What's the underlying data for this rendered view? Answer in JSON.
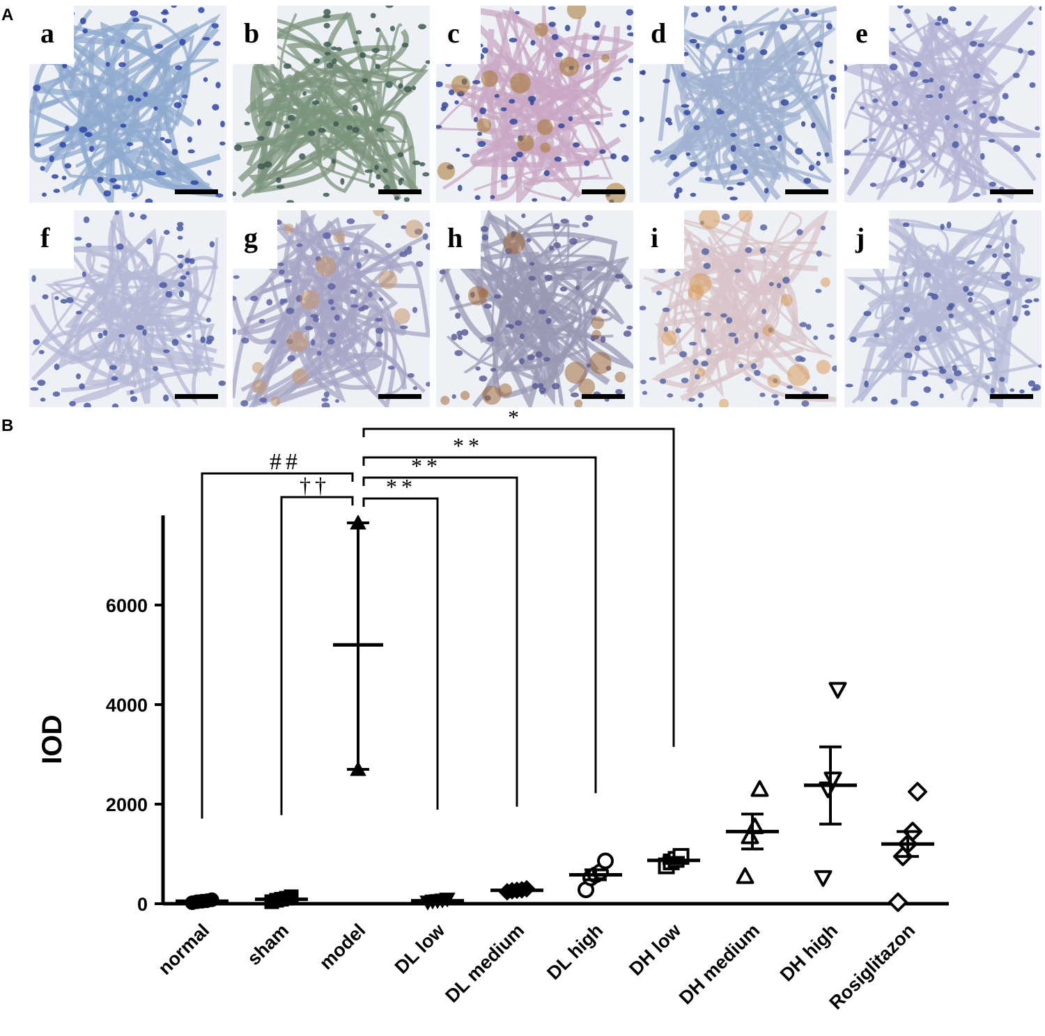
{
  "figure": {
    "panel_a_letter": "A",
    "panel_b_letter": "B"
  },
  "micrographs": [
    {
      "label": "a",
      "tissue": "#8fa9cf",
      "nuclei": "#2e45a8",
      "pigment": ""
    },
    {
      "label": "b",
      "tissue": "#7c947c",
      "nuclei": "#3e5a52",
      "pigment": ""
    },
    {
      "label": "c",
      "tissue": "#c9a8c4",
      "nuclei": "#34479c",
      "pigment": "#a5752c"
    },
    {
      "label": "d",
      "tissue": "#9fb0d0",
      "nuclei": "#34489c",
      "pigment": ""
    },
    {
      "label": "e",
      "tissue": "#b6b6d6",
      "nuclei": "#4c5aa6",
      "pigment": ""
    },
    {
      "label": "f",
      "tissue": "#b6b8d6",
      "nuclei": "#4a5aa4",
      "pigment": ""
    },
    {
      "label": "g",
      "tissue": "#a7a6c6",
      "nuclei": "#5e64a6",
      "pigment": "#c4956a"
    },
    {
      "label": "h",
      "tissue": "#9a98b4",
      "nuclei": "#5a5e96",
      "pigment": "#a06a3a"
    },
    {
      "label": "i",
      "tissue": "#d8c4c8",
      "nuclei": "#5c66a6",
      "pigment": "#d99a5a"
    },
    {
      "label": "j",
      "tissue": "#b6bad6",
      "nuclei": "#4a5aa2",
      "pigment": ""
    }
  ],
  "chart_data": {
    "type": "scatter",
    "ylabel": "IOD",
    "ylim": [
      0,
      7800
    ],
    "yticks": [
      0,
      2000,
      4000,
      6000
    ],
    "ytick_labels": [
      "0",
      "2000",
      "4000",
      "6000"
    ],
    "categories": [
      "normal",
      "sham",
      "model",
      "DL low",
      "DL medium",
      "DL high",
      "DH low",
      "DH medium",
      "DH high",
      "Rosiglitazon"
    ],
    "groups": [
      {
        "name": "normal",
        "marker": "circle-filled",
        "mean": 50,
        "sem_low": 30,
        "sem_high": 70,
        "points": [
          20,
          40,
          50,
          60,
          80
        ]
      },
      {
        "name": "sham",
        "marker": "square-filled",
        "mean": 90,
        "sem_low": 60,
        "sem_high": 120,
        "points": [
          40,
          70,
          90,
          110,
          140
        ]
      },
      {
        "name": "model",
        "marker": "triangle-up-filled",
        "mean": 5200,
        "sem_low": 2700,
        "sem_high": 7650,
        "points": [
          7650,
          2700
        ]
      },
      {
        "name": "DL low",
        "marker": "triangle-down-filled",
        "mean": 60,
        "sem_low": 40,
        "sem_high": 80,
        "points": [
          30,
          50,
          60,
          70,
          90
        ]
      },
      {
        "name": "DL medium",
        "marker": "diamond-filled",
        "mean": 270,
        "sem_low": 250,
        "sem_high": 290,
        "points": [
          240,
          260,
          270,
          280,
          300
        ]
      },
      {
        "name": "DL high",
        "marker": "circle-open",
        "mean": 580,
        "sem_low": 480,
        "sem_high": 680,
        "points": [
          280,
          520,
          580,
          640,
          860
        ]
      },
      {
        "name": "DH low",
        "marker": "square-open",
        "mean": 870,
        "sem_low": 810,
        "sem_high": 930,
        "points": [
          760,
          840,
          890,
          950
        ]
      },
      {
        "name": "DH medium",
        "marker": "triangle-up-open",
        "mean": 1450,
        "sem_low": 1100,
        "sem_high": 1800,
        "points": [
          550,
          1350,
          1550,
          2300
        ]
      },
      {
        "name": "DH high",
        "marker": "triangle-down-open",
        "mean": 2380,
        "sem_low": 1600,
        "sem_high": 3150,
        "points": [
          520,
          2300,
          2500,
          4300
        ]
      },
      {
        "name": "Rosiglitazon",
        "marker": "diamond-open",
        "mean": 1200,
        "sem_low": 950,
        "sem_high": 1450,
        "points": [
          30,
          950,
          1200,
          1450,
          2250
        ]
      }
    ],
    "comparisons": [
      {
        "label": "##",
        "from": "normal",
        "to": "model"
      },
      {
        "label": "††",
        "from": "sham",
        "to": "model"
      },
      {
        "label": "**",
        "from": "model",
        "to": "DL low"
      },
      {
        "label": "**",
        "from": "model",
        "to": "DL medium"
      },
      {
        "label": "**",
        "from": "model",
        "to": "DL high"
      },
      {
        "label": "*",
        "from": "model",
        "to": "DH low"
      }
    ]
  }
}
